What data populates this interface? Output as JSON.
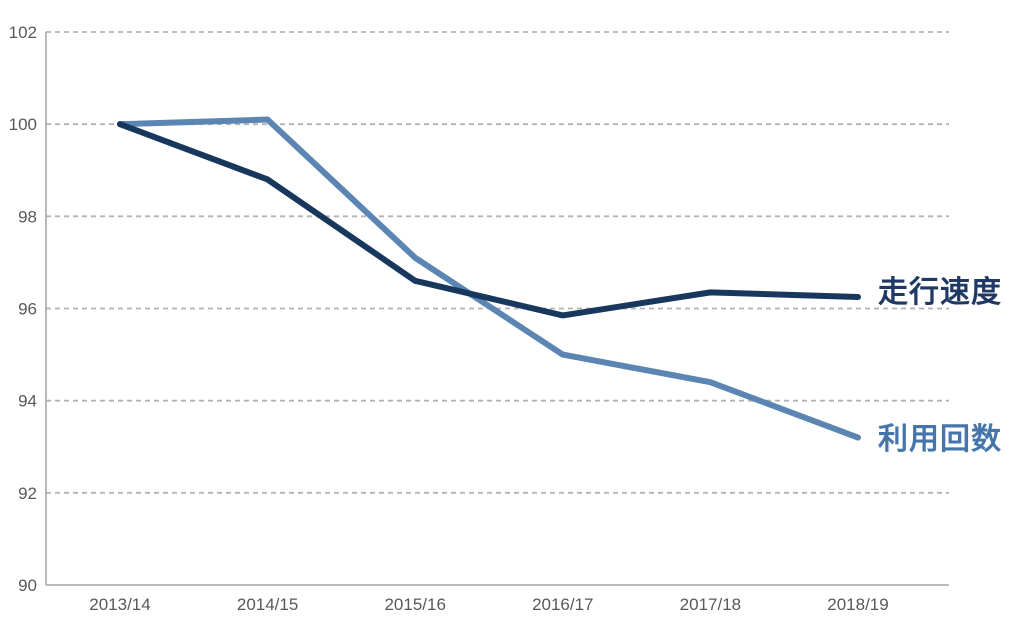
{
  "chart_data": {
    "type": "line",
    "title": "",
    "xlabel": "",
    "ylabel": "",
    "categories": [
      "2013/14",
      "2014/15",
      "2015/16",
      "2016/17",
      "2017/18",
      "2018/19"
    ],
    "series": [
      {
        "key": "running-speed",
        "name": "走行速度",
        "values": [
          100.0,
          98.8,
          96.6,
          95.85,
          96.35,
          96.25
        ],
        "line_color": "#17375d",
        "label_color": "#1f3864"
      },
      {
        "key": "usage-count",
        "name": "利用回数",
        "values": [
          100.0,
          100.1,
          97.1,
          95.0,
          94.4,
          93.2
        ],
        "line_color": "#5b85b2",
        "label_color": "#4576ab"
      }
    ],
    "ylim": [
      90,
      102
    ],
    "yticks": [
      90,
      92,
      94,
      96,
      98,
      100,
      102
    ],
    "grid": "horizontal-dashed",
    "legend_position": "right-of-line-ends",
    "styles": {
      "background": "#ffffff",
      "gridline_color": "#b3b3b3",
      "axis_color": "#a6a6a6",
      "tick_label_color": "#595959"
    }
  }
}
